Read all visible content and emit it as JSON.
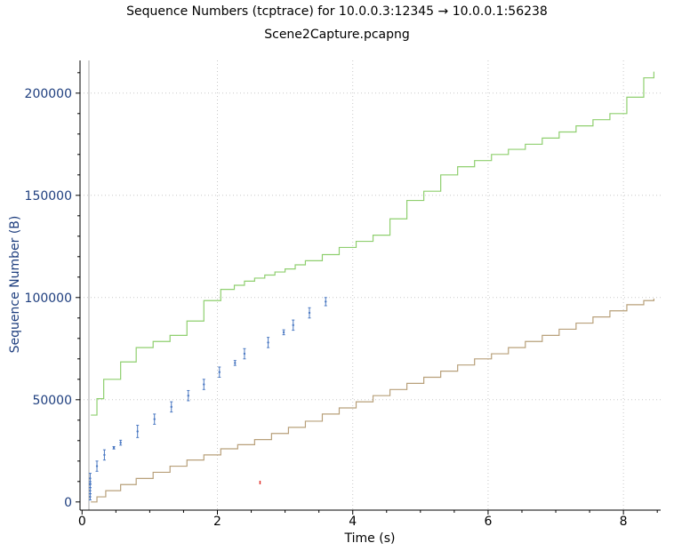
{
  "window": {
    "title": "Sequence Numbers (tcptrace) for 10.0.0.3:12345 → 10.0.0.1:56238",
    "subtitle": "Scene2Capture.pcapng"
  },
  "chart_data": {
    "type": "line",
    "title": "Sequence Numbers (tcptrace) for 10.0.0.3:12345 → 10.0.0.1:56238",
    "subtitle": "Scene2Capture.pcapng",
    "xlabel": "Time (s)",
    "ylabel": "Sequence Number (B)",
    "xlim": [
      -0.03,
      8.55
    ],
    "ylim": [
      -4000,
      216000
    ],
    "x_ticks": [
      0,
      2,
      4,
      6,
      8
    ],
    "x_tick_labels": [
      "0",
      "2",
      "4",
      "6",
      "8"
    ],
    "y_ticks": [
      0,
      50000,
      100000,
      150000,
      200000
    ],
    "y_tick_labels": [
      "0",
      "50000",
      "100000",
      "150000",
      "200000"
    ],
    "grid": true,
    "colors": {
      "receive_window": "#8fcf6f",
      "acked": "#b8a07a",
      "segments": "#4a78c2",
      "marker": "#e0302a",
      "axis_text": "#1f3f7f"
    },
    "series": [
      {
        "style": "step",
        "color": "#8fcf6f",
        "x": [
          0.13,
          0.22,
          0.32,
          0.57,
          0.8,
          1.05,
          1.3,
          1.55,
          1.8,
          2.05,
          2.25,
          2.4,
          2.55,
          2.7,
          2.85,
          3.0,
          3.15,
          3.3,
          3.55,
          3.8,
          4.05,
          4.3,
          4.55,
          4.8,
          5.05,
          5.3,
          5.55,
          5.8,
          6.05,
          6.3,
          6.55,
          6.8,
          7.05,
          7.3,
          7.55,
          7.8,
          8.05,
          8.3,
          8.45
        ],
        "y": [
          42500,
          50500,
          60000,
          68500,
          75500,
          78500,
          81500,
          88500,
          98500,
          104000,
          106000,
          108000,
          109500,
          111000,
          112500,
          114000,
          116000,
          118000,
          121000,
          124500,
          127500,
          130500,
          138500,
          147500,
          152000,
          160000,
          164000,
          167000,
          170000,
          172500,
          175000,
          178000,
          181000,
          184000,
          187000,
          190000,
          198000,
          207500,
          210500
        ]
      },
      {
        "style": "step",
        "color": "#b8a07a",
        "x": [
          0.13,
          0.22,
          0.35,
          0.57,
          0.8,
          1.05,
          1.3,
          1.55,
          1.8,
          2.05,
          2.3,
          2.55,
          2.8,
          3.05,
          3.3,
          3.55,
          3.8,
          4.05,
          4.3,
          4.55,
          4.8,
          5.05,
          5.3,
          5.55,
          5.8,
          6.05,
          6.3,
          6.55,
          6.8,
          7.05,
          7.3,
          7.55,
          7.8,
          8.05,
          8.3,
          8.45
        ],
        "y": [
          0,
          2500,
          5500,
          8500,
          11500,
          14500,
          17500,
          20500,
          23000,
          26000,
          28000,
          30500,
          33500,
          36500,
          39500,
          43000,
          46000,
          49000,
          52000,
          55000,
          58000,
          61000,
          64000,
          67000,
          70000,
          72500,
          75500,
          78500,
          81500,
          84500,
          87500,
          90500,
          93500,
          96500,
          98500,
          99500
        ]
      },
      {
        "style": "errorbar",
        "color": "#4a78c2",
        "x": [
          0.12,
          0.12,
          0.12,
          0.12,
          0.22,
          0.33,
          0.47,
          0.57,
          0.82,
          1.07,
          1.32,
          1.57,
          1.8,
          2.03,
          2.26,
          2.4,
          2.75,
          2.98,
          3.12,
          3.36,
          3.6
        ],
        "y": [
          2500,
          5500,
          8500,
          11500,
          17500,
          23000,
          26500,
          29000,
          34500,
          40500,
          46500,
          52000,
          57500,
          63500,
          68000,
          72500,
          78000,
          83000,
          86500,
          92500,
          98000
        ],
        "err": [
          1500,
          1500,
          1500,
          2500,
          2500,
          2500,
          600,
          1200,
          3000,
          2500,
          2500,
          2500,
          2500,
          2500,
          1200,
          2500,
          2500,
          1200,
          2500,
          2500,
          2000
        ]
      },
      {
        "style": "marker",
        "color": "#e0302a",
        "x": [
          2.63
        ],
        "y": [
          9500
        ]
      }
    ]
  }
}
